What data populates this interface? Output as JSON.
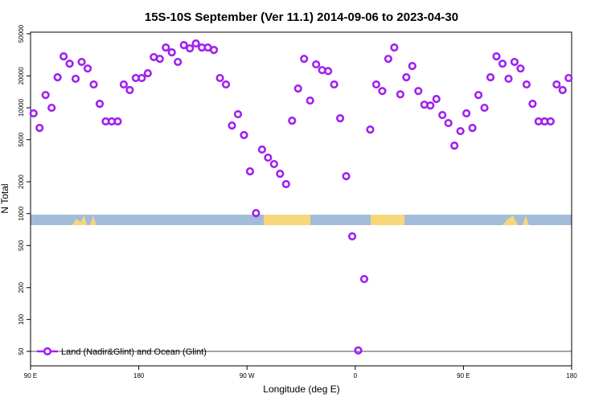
{
  "chart_data": {
    "type": "scatter",
    "title": "15S-10S September (Ver 11.1)   2014-09-06 to 2023-04-30",
    "xlabel": "Longitude (deg E)",
    "ylabel": "N Total",
    "yscale": "log",
    "xlim": [
      90,
      540
    ],
    "ylim": [
      36.5,
      51800
    ],
    "xticks": [
      {
        "value": 90,
        "label": "90 E"
      },
      {
        "value": 180,
        "label": "180"
      },
      {
        "value": 270,
        "label": "90 W"
      },
      {
        "value": 360,
        "label": "0"
      },
      {
        "value": 450,
        "label": "90 E"
      },
      {
        "value": 540,
        "label": "180"
      }
    ],
    "yticks": [
      50,
      100,
      200,
      500,
      1000,
      2000,
      5000,
      10000,
      20000,
      50000
    ],
    "legend": "lower left",
    "series": [
      {
        "name": "Land (Nadir&Glint) and Ocean (Glint)",
        "color": "#a020f0",
        "x": [
          92.5,
          97.5,
          102.5,
          107.5,
          112.5,
          117.5,
          122.5,
          127.5,
          132.5,
          137.5,
          142.5,
          147.5,
          152.5,
          157.5,
          162.5,
          167.5,
          172.5,
          177.5,
          182.5,
          187.5,
          192.5,
          197.5,
          202.5,
          207.5,
          212.5,
          217.5,
          222.5,
          227.5,
          232.5,
          237.5,
          242.5,
          247.5,
          252.5,
          257.5,
          262.5,
          267.5,
          272.5,
          277.5,
          282.5,
          287.5,
          292.5,
          297.5,
          302.5,
          307.5,
          312.5,
          317.5,
          322.5,
          327.5,
          332.5,
          337.5,
          342.5,
          347.5,
          352.5,
          357.5,
          362.5,
          367.5,
          372.5,
          377.5,
          382.5,
          387.5,
          392.5,
          397.5,
          402.5,
          407.5,
          412.5,
          417.5,
          422.5,
          427.5,
          432.5,
          437.5,
          442.5,
          447.5,
          452.5,
          457.5,
          462.5,
          467.5,
          472.5,
          477.5,
          482.5,
          487.5,
          492.5,
          497.5,
          502.5,
          507.5,
          512.5,
          517.5,
          522.5,
          527.5,
          532.5,
          537.5
        ],
        "values": [
          8850,
          6450,
          13200,
          10000,
          19400,
          30600,
          26100,
          18800,
          27100,
          23500,
          16600,
          10900,
          7430,
          7430,
          7430,
          16600,
          14700,
          19100,
          19100,
          21200,
          30100,
          29000,
          37100,
          33400,
          27100,
          39100,
          36400,
          40500,
          37100,
          37100,
          35200,
          19100,
          16600,
          6800,
          8690,
          5520,
          2510,
          1010,
          4030,
          3380,
          2940,
          2380,
          1900,
          7550,
          15200,
          29000,
          11700,
          25700,
          22700,
          22200,
          16600,
          7960,
          2260,
          610,
          51,
          241,
          6230,
          16600,
          14400,
          29000,
          37100,
          13400,
          19400,
          24800,
          14400,
          10700,
          10500,
          12100,
          8540,
          7170,
          4390,
          6020,
          8850,
          6450,
          13200,
          10000,
          19400,
          30600,
          26100,
          18800,
          27100,
          23500,
          16600,
          10900,
          7430,
          7430,
          7430,
          16600,
          14700,
          19100
        ]
      }
    ]
  }
}
